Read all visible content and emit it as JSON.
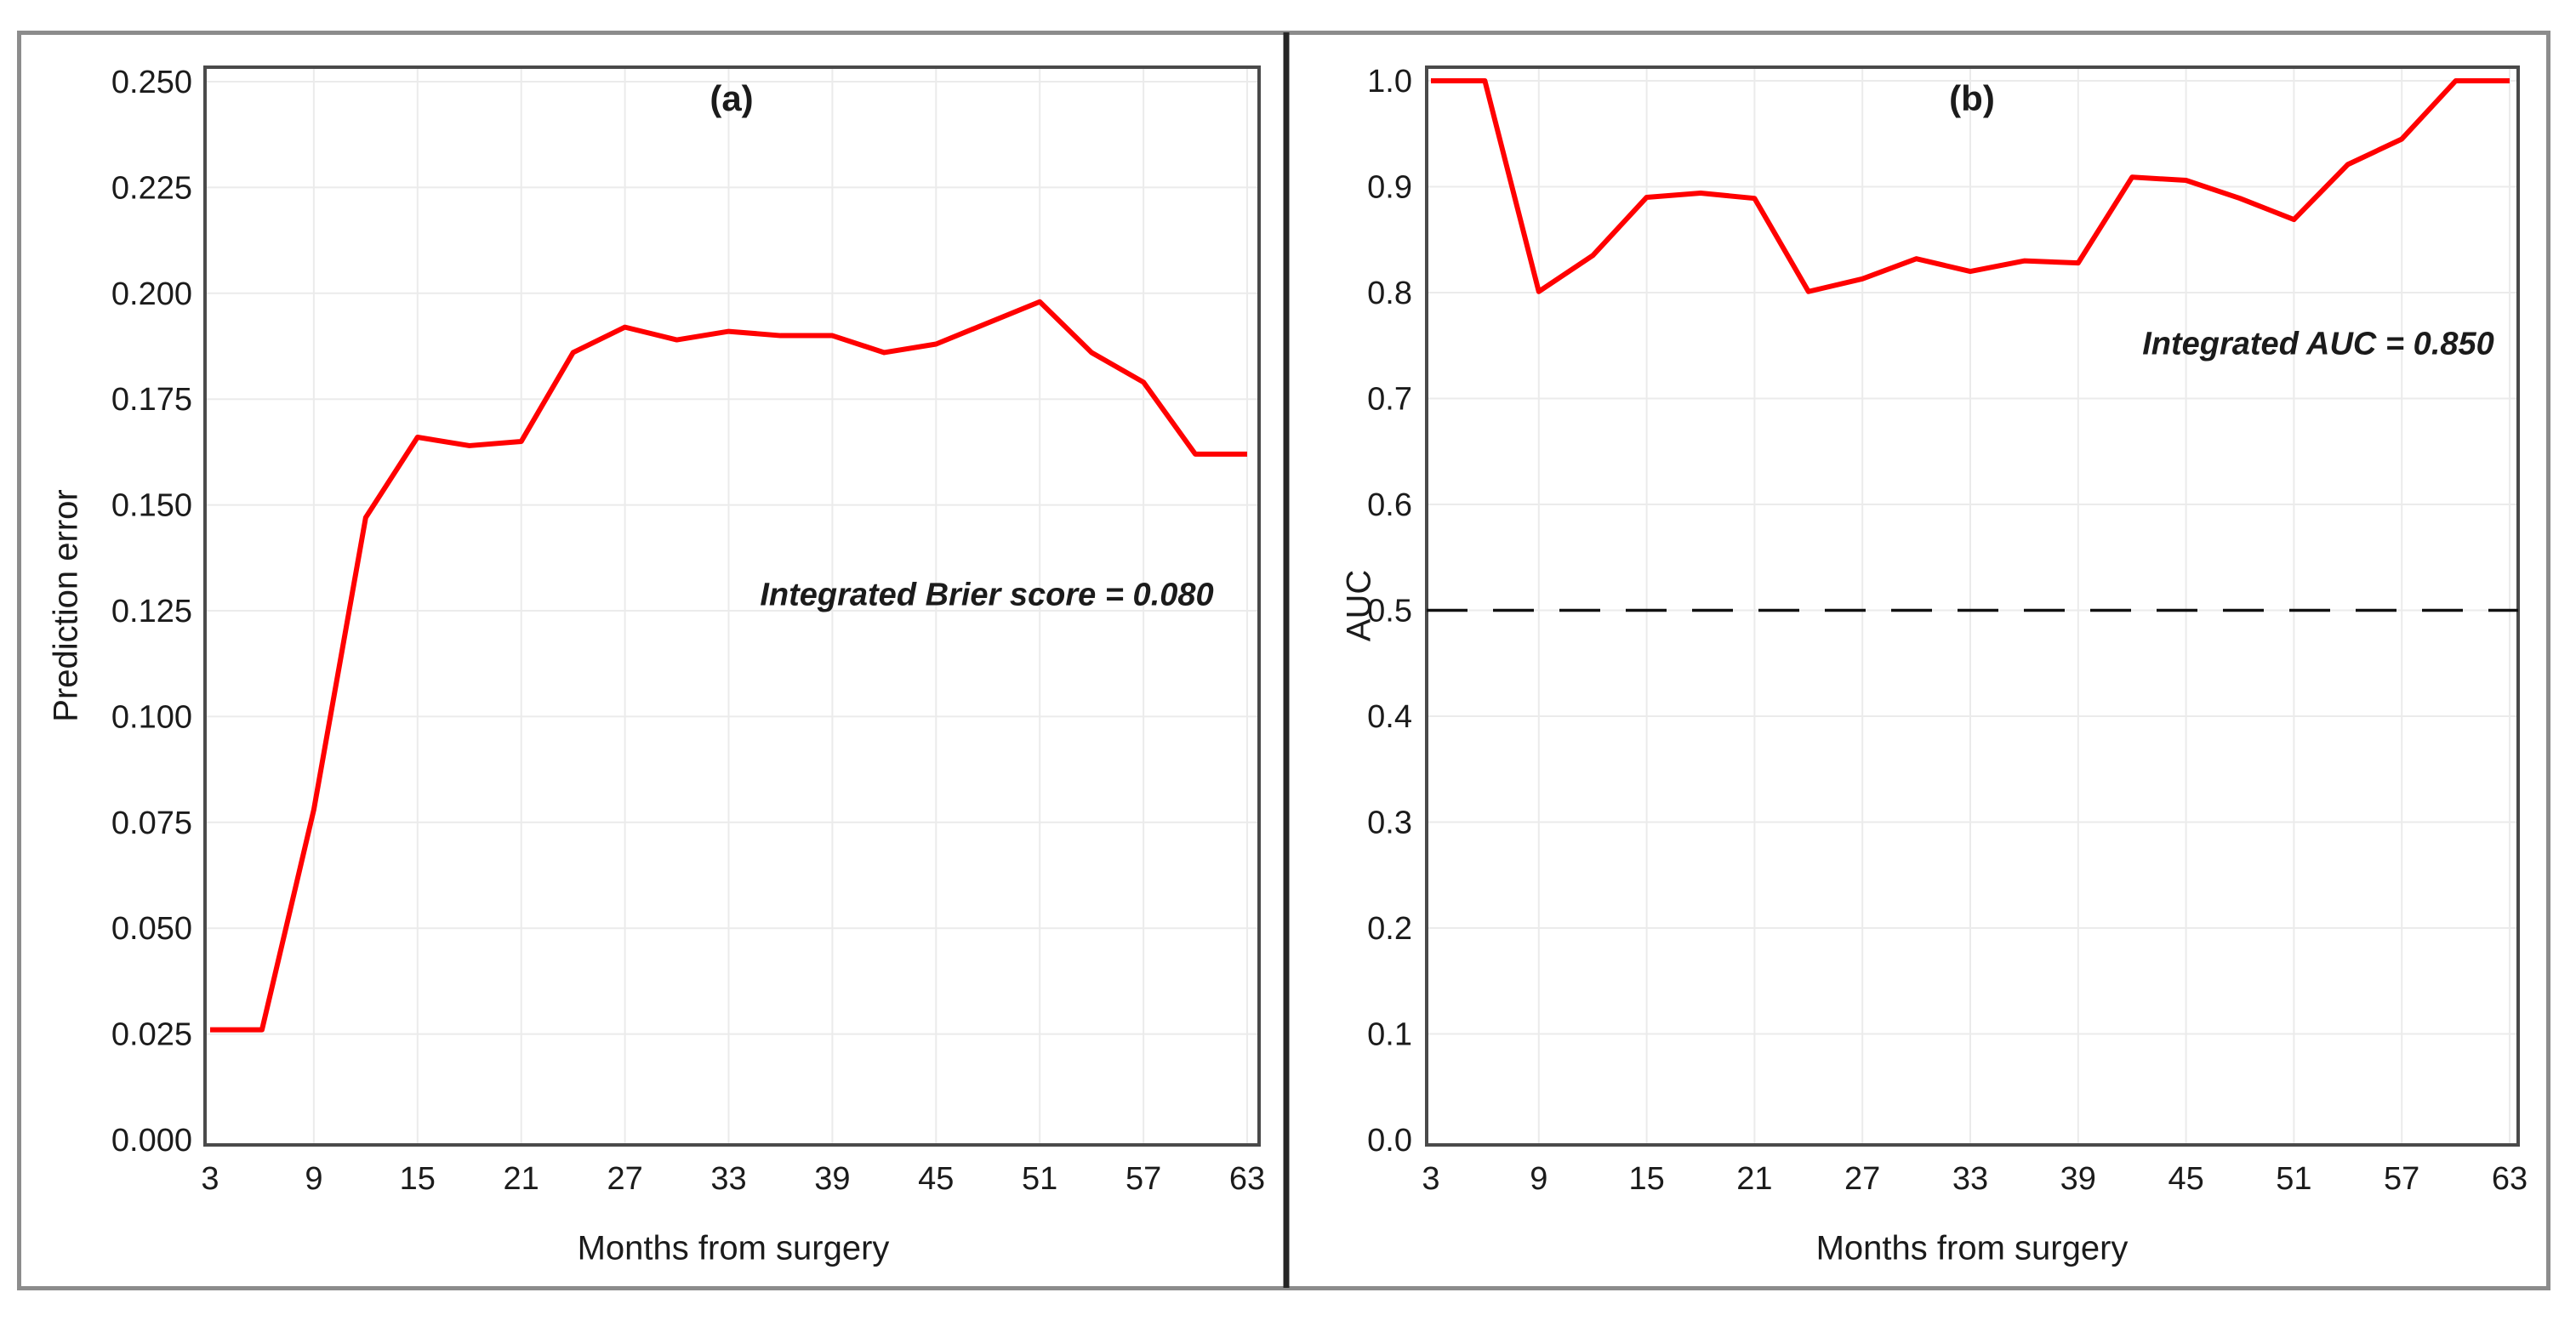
{
  "figure": {
    "background": "#ffffff",
    "border_color": "#8c8c8c",
    "divider_color": "#262626",
    "plot_frame_color": "#4a4a4a",
    "grid_color": "#ebebeb",
    "text_color": "#1b1b1b"
  },
  "chart_data": [
    {
      "id": "a",
      "type": "line",
      "panel_label": "(a)",
      "xlabel": "Months from surgery",
      "ylabel": "Prediction error",
      "line_color": "#ff0000",
      "x": [
        3,
        6,
        9,
        12,
        15,
        18,
        21,
        24,
        27,
        30,
        33,
        36,
        39,
        42,
        45,
        48,
        51,
        54,
        57,
        60,
        63
      ],
      "values": [
        0.026,
        0.026,
        0.078,
        0.147,
        0.166,
        0.164,
        0.165,
        0.186,
        0.192,
        0.189,
        0.191,
        0.19,
        0.19,
        0.186,
        0.188,
        0.193,
        0.198,
        0.186,
        0.179,
        0.162,
        0.162
      ],
      "xlim": [
        3,
        63
      ],
      "ylim": [
        0,
        0.25
      ],
      "xticks": [
        3,
        9,
        15,
        21,
        27,
        33,
        39,
        45,
        51,
        57,
        63
      ],
      "ytick_step": 0.025,
      "ytick_decimals": 3,
      "grid": true,
      "annotation": {
        "text": "Integrated Brier score = 0.080"
      }
    },
    {
      "id": "b",
      "type": "line",
      "panel_label": "(b)",
      "xlabel": "Months from surgery",
      "ylabel": "AUC",
      "line_color": "#ff0000",
      "x": [
        3,
        6,
        9,
        12,
        15,
        18,
        21,
        24,
        27,
        30,
        33,
        36,
        39,
        42,
        45,
        48,
        51,
        54,
        57,
        60,
        63
      ],
      "values": [
        1.0,
        1.0,
        0.801,
        0.835,
        0.89,
        0.894,
        0.889,
        0.801,
        0.813,
        0.832,
        0.82,
        0.83,
        0.828,
        0.909,
        0.906,
        0.889,
        0.869,
        0.921,
        0.945,
        1.0,
        1.0
      ],
      "xlim": [
        3,
        63
      ],
      "ylim": [
        0,
        1.0
      ],
      "xticks": [
        3,
        9,
        15,
        21,
        27,
        33,
        39,
        45,
        51,
        57,
        63
      ],
      "ytick_step": 0.1,
      "ytick_decimals": 1,
      "grid": true,
      "reference_line": {
        "value": 0.5,
        "style": "dashed",
        "color": "#111111"
      },
      "annotation": {
        "text": "Integrated AUC = 0.850"
      }
    }
  ]
}
